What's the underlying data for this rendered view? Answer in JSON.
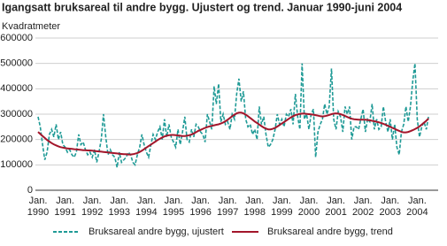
{
  "chart_data": {
    "type": "line",
    "title": "Igangsatt bruksareal til andre bygg. Ujustert og trend. Januar 1990-juni 2004",
    "y_label": "Kvadratmeter",
    "ylim": [
      0,
      600000
    ],
    "yticks": [
      0,
      100000,
      200000,
      300000,
      400000,
      500000,
      600000
    ],
    "grid": true,
    "categories": [
      "Jan. 1990",
      null,
      null,
      null,
      null,
      null,
      null,
      null,
      null,
      null,
      null,
      null,
      "Jan. 1991",
      null,
      null,
      null,
      null,
      null,
      null,
      null,
      null,
      null,
      null,
      null,
      "Jan. 1992",
      null,
      null,
      null,
      null,
      null,
      null,
      null,
      null,
      null,
      null,
      null,
      "Jan. 1993",
      null,
      null,
      null,
      null,
      null,
      null,
      null,
      null,
      null,
      null,
      null,
      "Jan. 1994",
      null,
      null,
      null,
      null,
      null,
      null,
      null,
      null,
      null,
      null,
      null,
      "Jan. 1995",
      null,
      null,
      null,
      null,
      null,
      null,
      null,
      null,
      null,
      null,
      null,
      "Jan. 1996",
      null,
      null,
      null,
      null,
      null,
      null,
      null,
      null,
      null,
      null,
      null,
      "Jan. 1997",
      null,
      null,
      null,
      null,
      null,
      null,
      null,
      null,
      null,
      null,
      null,
      "Jan. 1998",
      null,
      null,
      null,
      null,
      null,
      null,
      null,
      null,
      null,
      null,
      null,
      "Jan. 1999",
      null,
      null,
      null,
      null,
      null,
      null,
      null,
      null,
      null,
      null,
      null,
      "Jan. 2000",
      null,
      null,
      null,
      null,
      null,
      null,
      null,
      null,
      null,
      null,
      null,
      "Jan. 2001",
      null,
      null,
      null,
      null,
      null,
      null,
      null,
      null,
      null,
      null,
      null,
      "Jan. 2002",
      null,
      null,
      null,
      null,
      null,
      null,
      null,
      null,
      null,
      null,
      null,
      "Jan. 2003",
      null,
      null,
      null,
      null,
      null,
      null,
      null,
      null,
      null,
      null,
      null,
      "Jan. 2004",
      null,
      null,
      null,
      null,
      null
    ],
    "series": [
      {
        "name": "Bruksareal andre bygg, ujustert",
        "color": "#1f9a96",
        "dashed": true,
        "values": [
          290000,
          250000,
          180000,
          120000,
          150000,
          220000,
          240000,
          210000,
          260000,
          200000,
          230000,
          180000,
          170000,
          150000,
          160000,
          140000,
          130000,
          150000,
          220000,
          180000,
          190000,
          160000,
          140000,
          150000,
          130000,
          160000,
          110000,
          150000,
          200000,
          300000,
          210000,
          140000,
          160000,
          140000,
          130000,
          90000,
          150000,
          110000,
          120000,
          130000,
          150000,
          140000,
          110000,
          100000,
          140000,
          170000,
          220000,
          180000,
          150000,
          130000,
          180000,
          220000,
          200000,
          230000,
          250000,
          200000,
          280000,
          210000,
          260000,
          210000,
          190000,
          170000,
          240000,
          180000,
          230000,
          290000,
          200000,
          190000,
          240000,
          210000,
          260000,
          250000,
          230000,
          220000,
          190000,
          300000,
          270000,
          240000,
          410000,
          340000,
          420000,
          270000,
          300000,
          260000,
          270000,
          240000,
          300000,
          280000,
          380000,
          440000,
          350000,
          390000,
          280000,
          250000,
          260000,
          220000,
          240000,
          200000,
          330000,
          260000,
          290000,
          220000,
          170000,
          180000,
          200000,
          240000,
          300000,
          260000,
          280000,
          250000,
          300000,
          290000,
          320000,
          260000,
          380000,
          290000,
          240000,
          500000,
          280000,
          300000,
          240000,
          300000,
          320000,
          130000,
          230000,
          260000,
          280000,
          340000,
          300000,
          330000,
          480000,
          280000,
          240000,
          310000,
          290000,
          230000,
          330000,
          300000,
          330000,
          200000,
          250000,
          250000,
          240000,
          280000,
          320000,
          230000,
          280000,
          270000,
          340000,
          240000,
          280000,
          240000,
          250000,
          330000,
          270000,
          230000,
          280000,
          200000,
          260000,
          170000,
          140000,
          230000,
          260000,
          330000,
          270000,
          330000,
          430000,
          500000,
          280000,
          210000,
          250000,
          270000,
          240000,
          290000
        ]
      },
      {
        "name": "Bruksareal andre bygg, trend",
        "color": "#a3162b",
        "dashed": false,
        "values": [
          230000,
          222000,
          214000,
          206000,
          198000,
          192000,
          186000,
          181000,
          177000,
          173000,
          170000,
          168000,
          166000,
          165000,
          164000,
          163000,
          162000,
          161000,
          160000,
          159000,
          158000,
          158000,
          157000,
          157000,
          156000,
          155000,
          154000,
          153000,
          152000,
          151000,
          150000,
          149000,
          148000,
          147000,
          146000,
          145000,
          144000,
          143000,
          142000,
          142000,
          141000,
          141000,
          142000,
          144000,
          147000,
          151000,
          156000,
          162000,
          168000,
          174000,
          180000,
          186000,
          192000,
          198000,
          203000,
          208000,
          212000,
          215000,
          217000,
          218000,
          218000,
          217000,
          216000,
          215000,
          214000,
          214000,
          215000,
          217000,
          220000,
          224000,
          229000,
          234000,
          238000,
          242000,
          246000,
          249000,
          252000,
          254000,
          256000,
          258000,
          260000,
          263000,
          267000,
          272000,
          278000,
          285000,
          292000,
          298000,
          303000,
          306000,
          306000,
          303000,
          298000,
          292000,
          285000,
          278000,
          271000,
          265000,
          259000,
          253000,
          247000,
          243000,
          240000,
          240000,
          242000,
          246000,
          251000,
          257000,
          263000,
          269000,
          275000,
          281000,
          287000,
          292000,
          296000,
          299000,
          301000,
          302000,
          302000,
          301000,
          300000,
          299000,
          298000,
          296000,
          294000,
          292000,
          291000,
          292000,
          294000,
          297000,
          300000,
          302000,
          303000,
          302000,
          300000,
          297000,
          293000,
          289000,
          285000,
          282000,
          280000,
          279000,
          278000,
          278000,
          278000,
          278000,
          277000,
          276000,
          274000,
          272000,
          270000,
          268000,
          265000,
          262000,
          258000,
          254000,
          250000,
          246000,
          242000,
          238000,
          234000,
          230000,
          228000,
          228000,
          230000,
          233000,
          237000,
          241000,
          246000,
          252000,
          259000,
          266000,
          274000,
          283000
        ]
      }
    ]
  }
}
